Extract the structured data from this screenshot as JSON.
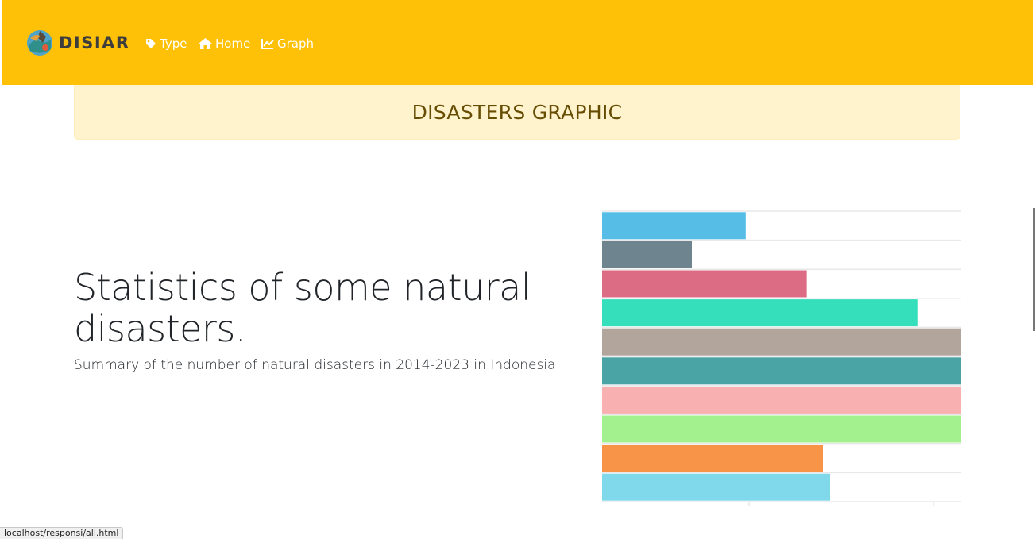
{
  "navbar": {
    "brand": "DISIAR",
    "links": [
      {
        "label": "Type",
        "icon": "tag-icon"
      },
      {
        "label": "Home",
        "icon": "home-icon"
      },
      {
        "label": "Graph",
        "icon": "line-chart-icon"
      }
    ],
    "background_color": "#ffc107"
  },
  "banner": {
    "title": "DISASTERS GRAPHIC"
  },
  "hero": {
    "headline": "Statistics of some natural disasters.",
    "subtitle": "Summary of the number of natural disasters in 2014-2023 in Indonesia"
  },
  "chart_data": {
    "type": "bar",
    "orientation": "horizontal",
    "grid": true,
    "xlim": [
      0,
      1
    ],
    "values": [
      0.4,
      0.25,
      0.57,
      0.88,
      1.0,
      1.0,
      1.0,
      1.0,
      0.615,
      0.635
    ],
    "colors": [
      "#55bde6",
      "#6e848e",
      "#dc6b84",
      "#36dfbb",
      "#b1a59c",
      "#4aa3a4",
      "#f8b0b1",
      "#a3f08e",
      "#f79447",
      "#80d9ea"
    ]
  },
  "status_bar": {
    "url": "localhost/responsi/all.html"
  }
}
